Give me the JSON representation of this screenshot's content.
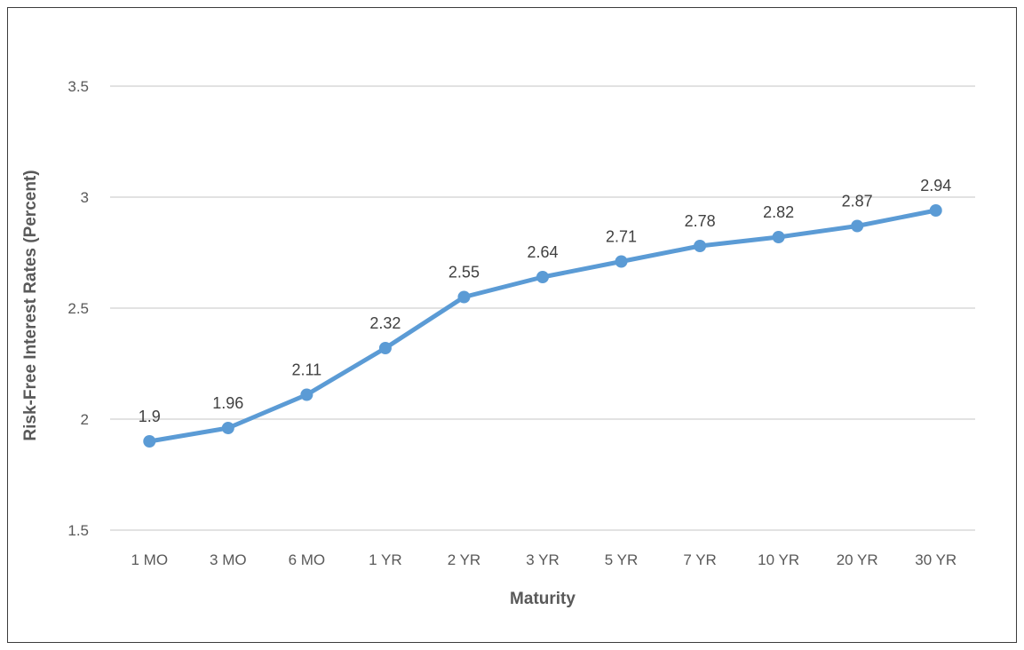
{
  "chart_data": {
    "type": "line",
    "title": "",
    "xlabel": "Maturity",
    "ylabel": "Risk-Free Interest Rates (Percent)",
    "categories": [
      "1 MO",
      "3 MO",
      "6 MO",
      "1 YR",
      "2 YR",
      "3 YR",
      "5 YR",
      "7 YR",
      "10 YR",
      "20 YR",
      "30 YR"
    ],
    "series": [
      {
        "values": [
          1.9,
          1.96,
          2.11,
          2.32,
          2.55,
          2.64,
          2.71,
          2.78,
          2.82,
          2.87,
          2.94
        ]
      }
    ],
    "data_labels": [
      "1.9",
      "1.96",
      "2.11",
      "2.32",
      "2.55",
      "2.64",
      "2.71",
      "2.78",
      "2.82",
      "2.87",
      "2.94"
    ],
    "ylim": [
      1.5,
      3.5
    ],
    "yticks": [
      "1.5",
      "2",
      "2.5",
      "3",
      "3.5"
    ],
    "grid": true,
    "legend": "none",
    "colors": {
      "line": "#5b9bd5",
      "grid": "#d9d9d9",
      "text": "#595959"
    }
  }
}
